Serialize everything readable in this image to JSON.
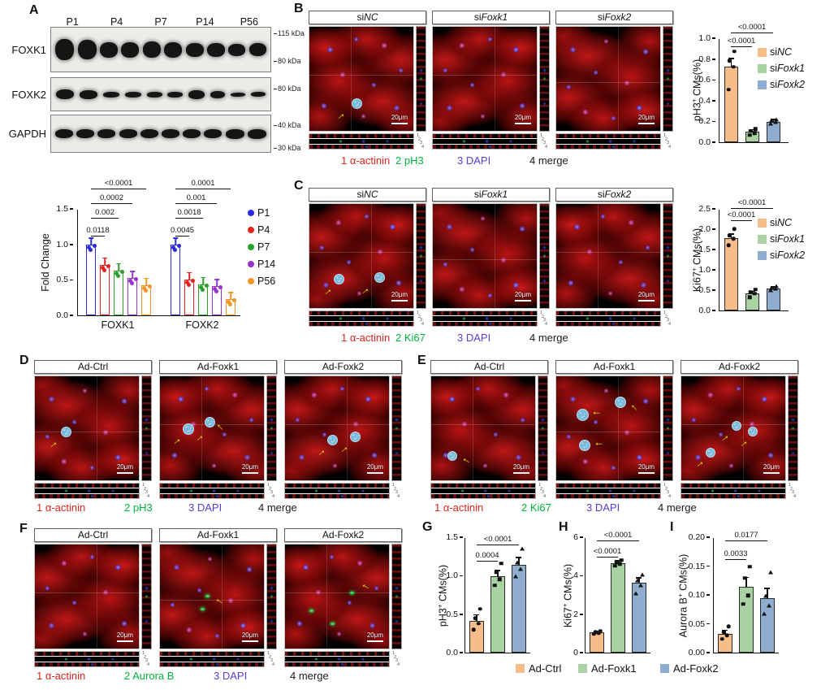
{
  "shared": {
    "scalebar": "20μm",
    "bracket_labels": [
      "1",
      "2",
      "3",
      "4"
    ],
    "bar_colors": [
      "#f6bd8b",
      "#a9d3a2",
      "#8fadce"
    ]
  },
  "panelA": {
    "label": "A",
    "lanes": [
      "P1",
      "P4",
      "P7",
      "P14",
      "P56"
    ],
    "rows": [
      {
        "label": "FOXK1",
        "markers": [
          "115 kDa",
          "80 kDa"
        ]
      },
      {
        "label": "FOXK2",
        "markers": [
          "80 kDa"
        ]
      },
      {
        "label": "GAPDH",
        "markers": [
          "40 kDa",
          "30 kDa"
        ]
      }
    ]
  },
  "panelB": {
    "label": "B",
    "images": [
      {
        "pre": "si",
        "it": "NC"
      },
      {
        "pre": "si",
        "it": "Foxk1"
      },
      {
        "pre": "si",
        "it": "Foxk2"
      }
    ],
    "channels": [
      {
        "text": "1 α-actinin",
        "color": "#e0231e"
      },
      {
        "text": "2 pH3",
        "color": "#00b33c"
      },
      {
        "text": "3 DAPI",
        "color": "#5340d6"
      },
      {
        "text": "4 merge",
        "color": "#1a1a1a"
      }
    ]
  },
  "panelC": {
    "label": "C",
    "images": [
      {
        "pre": "si",
        "it": "NC"
      },
      {
        "pre": "si",
        "it": "Foxk1"
      },
      {
        "pre": "si",
        "it": "Foxk2"
      }
    ],
    "channels": [
      {
        "text": "1 α-actinin",
        "color": "#e0231e"
      },
      {
        "text": "2 Ki67",
        "color": "#00b33c"
      },
      {
        "text": "3 DAPI",
        "color": "#5340d6"
      },
      {
        "text": "4 merge",
        "color": "#1a1a1a"
      }
    ]
  },
  "panelD": {
    "label": "D",
    "images": [
      {
        "pre": "Ad-Ctrl",
        "it": ""
      },
      {
        "pre": "Ad-Foxk1",
        "it": ""
      },
      {
        "pre": "Ad-Foxk2",
        "it": ""
      }
    ],
    "channels": [
      {
        "text": "1 α-actinin",
        "color": "#e0231e"
      },
      {
        "text": "2 pH3",
        "color": "#00b33c"
      },
      {
        "text": "3 DAPI",
        "color": "#5340d6"
      },
      {
        "text": "4 merge",
        "color": "#1a1a1a"
      }
    ]
  },
  "panelE": {
    "label": "E",
    "images": [
      {
        "pre": "Ad-Ctrl",
        "it": ""
      },
      {
        "pre": "Ad-Foxk1",
        "it": ""
      },
      {
        "pre": "Ad-Foxk2",
        "it": ""
      }
    ],
    "channels": [
      {
        "text": "1 α-actinin",
        "color": "#e0231e"
      },
      {
        "text": "2 Ki67",
        "color": "#00b33c"
      },
      {
        "text": "3 DAPI",
        "color": "#5340d6"
      },
      {
        "text": "4 merge",
        "color": "#1a1a1a"
      }
    ]
  },
  "panelF": {
    "label": "F",
    "images": [
      {
        "pre": "Ad-Ctrl",
        "it": ""
      },
      {
        "pre": "Ad-Foxk1",
        "it": ""
      },
      {
        "pre": "Ad-Foxk2",
        "it": ""
      }
    ],
    "channels": [
      {
        "text": "1 α-actinin",
        "color": "#e0231e"
      },
      {
        "text": "2 Aurora B",
        "color": "#00b33c"
      },
      {
        "text": "3 DAPI",
        "color": "#5340d6"
      },
      {
        "text": "4 merge",
        "color": "#1a1a1a"
      }
    ]
  },
  "si_legend": [
    {
      "pre": "si",
      "it": "NC",
      "color": "#f6bd8b"
    },
    {
      "pre": "si",
      "it": "Foxk1",
      "color": "#a9d3a2"
    },
    {
      "pre": "si",
      "it": "Foxk2",
      "color": "#8fadce"
    }
  ],
  "ad_legend": [
    {
      "pre": "Ad-Ctrl",
      "color": "#f6bd8b"
    },
    {
      "pre": "Ad-Foxk1",
      "color": "#a9d3a2"
    },
    {
      "pre": "Ad-Foxk2",
      "color": "#8fadce"
    }
  ],
  "chart_data": [
    {
      "id": "fold-change",
      "type": "bar",
      "ylabel": "Fold Change",
      "ylim": [
        0,
        1.5
      ],
      "yticks": [
        "1.5",
        "1.0",
        "0.5",
        "0.0"
      ],
      "categories": [
        "FOXK1",
        "FOXK2"
      ],
      "series": [
        {
          "name": "P1",
          "color": "#2b2be2",
          "values": [
            1.0,
            1.0
          ]
        },
        {
          "name": "P4",
          "color": "#e8211d",
          "values": [
            0.72,
            0.51
          ]
        },
        {
          "name": "P7",
          "color": "#2ca02c",
          "values": [
            0.64,
            0.44
          ]
        },
        {
          "name": "P14",
          "color": "#9a32cd",
          "values": [
            0.53,
            0.41
          ]
        },
        {
          "name": "P56",
          "color": "#f59325",
          "values": [
            0.43,
            0.23
          ]
        }
      ],
      "pvalues": {
        "FOXK1": [
          "0.0118",
          "0.002",
          "0.0002",
          "<0.0001"
        ],
        "FOXK2": [
          "0.0045",
          "0.0018",
          "0.001",
          "0.0001"
        ]
      },
      "legend_position": "right",
      "grid": false
    },
    {
      "id": "ph3-si-knockdown",
      "type": "bar",
      "ylabel_parts": {
        "pre": "pH3",
        "sup": "+",
        "post": " CMs(%)"
      },
      "ylim": [
        0,
        1.0
      ],
      "yticks": [
        "1.0",
        "0.8",
        "0.6",
        "0.4",
        "0.2",
        "0.0"
      ],
      "categories": [
        "siNC",
        "siFoxk1",
        "siFoxk2"
      ],
      "values": [
        0.73,
        0.1,
        0.2
      ],
      "errors": [
        0.08,
        0.02,
        0.02
      ],
      "points": [
        [
          0.51,
          0.73,
          0.79,
          0.88
        ],
        [
          0.07,
          0.09,
          0.11,
          0.13
        ],
        [
          0.18,
          0.2,
          0.21,
          0.22
        ]
      ],
      "pvalues": [
        "<0.0001",
        "<0.0001"
      ],
      "legend_position": "right",
      "grid": false
    },
    {
      "id": "ki67-si-knockdown",
      "type": "bar",
      "ylabel_parts": {
        "pre": "Ki67",
        "sup": "+",
        "post": " CMs(%)"
      },
      "ylim": [
        0,
        2.5
      ],
      "yticks": [
        "2.5",
        "2.0",
        "1.5",
        "1.0",
        "0.5",
        "0.0"
      ],
      "categories": [
        "siNC",
        "siFoxk1",
        "siFoxk2"
      ],
      "values": [
        1.8,
        0.43,
        0.55
      ],
      "errors": [
        0.09,
        0.04,
        0.03
      ],
      "points": [
        [
          1.62,
          1.78,
          1.86,
          2.02
        ],
        [
          0.33,
          0.42,
          0.46,
          0.52
        ],
        [
          0.5,
          0.54,
          0.57,
          0.6
        ]
      ],
      "pvalues": [
        "<0.0001",
        "<0.0001"
      ],
      "legend_position": "right",
      "grid": false
    },
    {
      "id": "ph3-overexpression",
      "panel": "G",
      "type": "bar",
      "ylabel_parts": {
        "pre": "pH3",
        "sup": "+",
        "post": " CMs(%)"
      },
      "ylim": [
        0,
        1.5
      ],
      "yticks": [
        "1.5",
        "1.0",
        "0.5",
        "0.0"
      ],
      "categories": [
        "Ad-Ctrl",
        "Ad-Foxk1",
        "Ad-Foxk2"
      ],
      "values": [
        0.42,
        1.0,
        1.15
      ],
      "errors": [
        0.07,
        0.07,
        0.09
      ],
      "points": [
        [
          0.3,
          0.38,
          0.45,
          0.57
        ],
        [
          0.88,
          0.96,
          1.05,
          1.17
        ],
        [
          1.0,
          1.1,
          1.18,
          1.36
        ]
      ],
      "pvalues": [
        "0.0004",
        "<0.0001"
      ],
      "legend_position": "bottom",
      "grid": false
    },
    {
      "id": "ki67-overexpression",
      "panel": "H",
      "type": "bar",
      "ylabel_parts": {
        "pre": "Ki67",
        "sup": "+",
        "post": " CMs(%)"
      },
      "ylim": [
        0,
        6
      ],
      "yticks": [
        "6",
        "4",
        "2",
        "0"
      ],
      "categories": [
        "Ad-Ctrl",
        "Ad-Foxk1",
        "Ad-Foxk2"
      ],
      "values": [
        1.05,
        4.7,
        3.65
      ],
      "errors": [
        0.06,
        0.1,
        0.25
      ],
      "points": [
        [
          0.97,
          1.02,
          1.08,
          1.14
        ],
        [
          4.55,
          4.65,
          4.72,
          4.85
        ],
        [
          3.1,
          3.55,
          3.8,
          4.1
        ]
      ],
      "pvalues": [
        "<0.0001",
        "<0.0001"
      ],
      "legend_position": "bottom",
      "grid": false
    },
    {
      "id": "aurorab-overexpression",
      "panel": "I",
      "type": "bar",
      "ylabel_parts": {
        "pre": "Aurora B",
        "sup": "+",
        "post": " CMs(%)"
      },
      "ylim": [
        0,
        0.2
      ],
      "yticks": [
        "0.20",
        "0.15",
        "0.10",
        "0.05",
        "0.00"
      ],
      "categories": [
        "Ad-Ctrl",
        "Ad-Foxk1",
        "Ad-Foxk2"
      ],
      "values": [
        0.032,
        0.115,
        0.095
      ],
      "errors": [
        0.007,
        0.016,
        0.017
      ],
      "points": [
        [
          0.024,
          0.03,
          0.036,
          0.046
        ],
        [
          0.085,
          0.1,
          0.13,
          0.15
        ],
        [
          0.068,
          0.082,
          0.1,
          0.14
        ]
      ],
      "pvalues": [
        "0.0033",
        "0.0177"
      ],
      "legend_position": "bottom",
      "grid": false
    }
  ]
}
